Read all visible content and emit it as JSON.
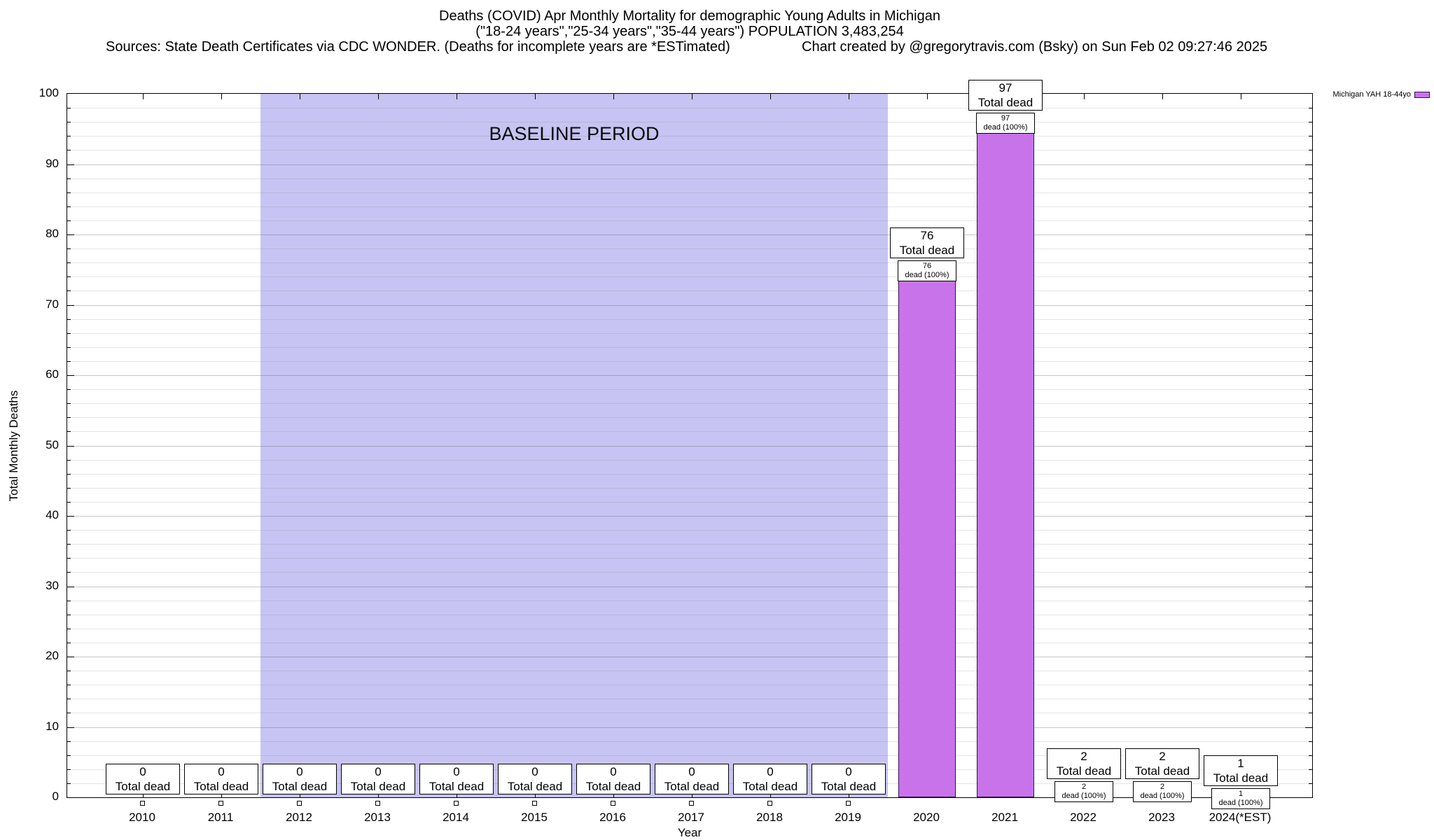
{
  "title": {
    "line1": "Deaths (COVID) Apr Monthly Mortality for demographic Young Adults in Michigan",
    "line2": "(\"18-24 years\",\"25-34 years\",\"35-44 years\") POPULATION 3,483,254",
    "sources": "Sources: State Death Certificates via CDC WONDER. (Deaths for incomplete years are *ESTimated)",
    "credit": "Chart created by @gregorytravis.com (Bsky) on Sun Feb 02 09:27:46 2025"
  },
  "chart_data": {
    "type": "bar",
    "title": "Deaths (COVID) Apr Monthly Mortality for demographic Young Adults in Michigan",
    "xlabel": "Year",
    "ylabel": "Total Monthly Deaths",
    "ylim": [
      0,
      100
    ],
    "ytick_step": 10,
    "grid": true,
    "legend_position": "top-right-outside",
    "categories": [
      "2010",
      "2011",
      "2012",
      "2013",
      "2014",
      "2015",
      "2016",
      "2017",
      "2018",
      "2019",
      "2020",
      "2021",
      "2022",
      "2023",
      "2024(*EST)"
    ],
    "values": [
      0,
      0,
      0,
      0,
      0,
      0,
      0,
      0,
      0,
      0,
      76,
      97,
      2,
      2,
      1
    ],
    "bar_color": "#c873ea",
    "bar_border": "#3a0d55",
    "baseline_region": {
      "label": "BASELINE PERIOD",
      "start_index": 2,
      "end_index": 9,
      "color": "#c7c4f3"
    },
    "legend": {
      "label": "Michigan YAH 18-44yo",
      "color": "#c873ea",
      "border": "#3a0d55"
    },
    "annotations": {
      "total_label": "Total dead",
      "pct_label": "dead (100%)"
    }
  }
}
